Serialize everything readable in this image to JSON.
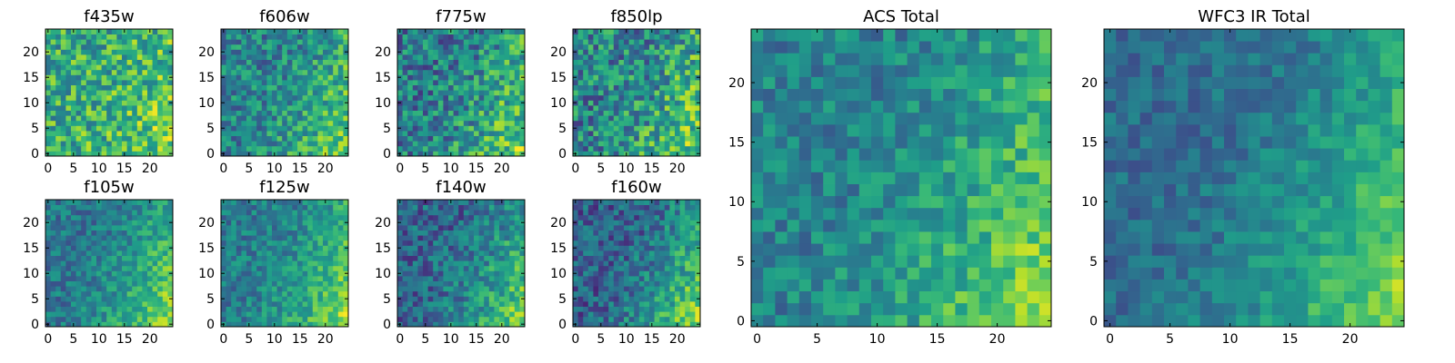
{
  "figure": {
    "background": "#ffffff",
    "colormap": "viridis",
    "colormap_stops": [
      "#440154",
      "#482878",
      "#3e4989",
      "#31688e",
      "#26828e",
      "#1f9e89",
      "#35b779",
      "#6ece58",
      "#b5de2b",
      "#fde725"
    ]
  },
  "chart_data": [
    {
      "type": "heatmap",
      "title": "f435w",
      "grid_size": 25,
      "xticks": [
        "0",
        "5",
        "10",
        "15",
        "20"
      ],
      "yticks": [
        "0",
        "5",
        "10",
        "15",
        "20"
      ],
      "xlim": [
        -0.5,
        24.5
      ],
      "ylim": [
        -0.5,
        24.5
      ],
      "value_range": [
        0,
        1
      ],
      "base_level": 0.62,
      "noise_amplitude": 0.26,
      "gradient": {
        "bright_corner": "lower-right",
        "strength": 0.22
      },
      "seed": 11
    },
    {
      "type": "heatmap",
      "title": "f606w",
      "grid_size": 25,
      "xticks": [
        "0",
        "5",
        "10",
        "15",
        "20"
      ],
      "yticks": [
        "0",
        "5",
        "10",
        "15",
        "20"
      ],
      "xlim": [
        -0.5,
        24.5
      ],
      "ylim": [
        -0.5,
        24.5
      ],
      "value_range": [
        0,
        1
      ],
      "base_level": 0.45,
      "noise_amplitude": 0.22,
      "gradient": {
        "bright_corner": "lower-right",
        "strength": 0.45
      },
      "seed": 23
    },
    {
      "type": "heatmap",
      "title": "f775w",
      "grid_size": 25,
      "xticks": [
        "0",
        "5",
        "10",
        "15",
        "20"
      ],
      "yticks": [
        "0",
        "5",
        "10",
        "15",
        "20"
      ],
      "xlim": [
        -0.5,
        24.5
      ],
      "ylim": [
        -0.5,
        24.5
      ],
      "value_range": [
        0,
        1
      ],
      "base_level": 0.42,
      "noise_amplitude": 0.26,
      "gradient": {
        "bright_corner": "lower-right",
        "strength": 0.5
      },
      "seed": 37
    },
    {
      "type": "heatmap",
      "title": "f850lp",
      "grid_size": 25,
      "xticks": [
        "0",
        "5",
        "10",
        "15",
        "20"
      ],
      "yticks": [
        "0",
        "5",
        "10",
        "15",
        "20"
      ],
      "xlim": [
        -0.5,
        24.5
      ],
      "ylim": [
        -0.5,
        24.5
      ],
      "value_range": [
        0,
        1
      ],
      "base_level": 0.45,
      "noise_amplitude": 0.28,
      "gradient": {
        "bright_corner": "lower-right",
        "strength": 0.45
      },
      "seed": 41
    },
    {
      "type": "heatmap",
      "title": "f105w",
      "grid_size": 25,
      "xticks": [
        "0",
        "5",
        "10",
        "15",
        "20"
      ],
      "yticks": [
        "0",
        "5",
        "10",
        "15",
        "20"
      ],
      "xlim": [
        -0.5,
        24.5
      ],
      "ylim": [
        -0.5,
        24.5
      ],
      "value_range": [
        0,
        1
      ],
      "base_level": 0.4,
      "noise_amplitude": 0.16,
      "gradient": {
        "bright_corner": "lower-right",
        "strength": 0.6
      },
      "seed": 53
    },
    {
      "type": "heatmap",
      "title": "f125w",
      "grid_size": 25,
      "xticks": [
        "0",
        "5",
        "10",
        "15",
        "20"
      ],
      "yticks": [
        "0",
        "5",
        "10",
        "15",
        "20"
      ],
      "xlim": [
        -0.5,
        24.5
      ],
      "ylim": [
        -0.5,
        24.5
      ],
      "value_range": [
        0,
        1
      ],
      "base_level": 0.42,
      "noise_amplitude": 0.16,
      "gradient": {
        "bright_corner": "lower-right",
        "strength": 0.58
      },
      "seed": 67
    },
    {
      "type": "heatmap",
      "title": "f140w",
      "grid_size": 25,
      "xticks": [
        "0",
        "5",
        "10",
        "15",
        "20"
      ],
      "yticks": [
        "0",
        "5",
        "10",
        "15",
        "20"
      ],
      "xlim": [
        -0.5,
        24.5
      ],
      "ylim": [
        -0.5,
        24.5
      ],
      "value_range": [
        0,
        1
      ],
      "base_level": 0.32,
      "noise_amplitude": 0.2,
      "gradient": {
        "bright_corner": "lower-right",
        "strength": 0.66
      },
      "seed": 71
    },
    {
      "type": "heatmap",
      "title": "f160w",
      "grid_size": 25,
      "xticks": [
        "0",
        "5",
        "10",
        "15",
        "20"
      ],
      "yticks": [
        "0",
        "5",
        "10",
        "15",
        "20"
      ],
      "xlim": [
        -0.5,
        24.5
      ],
      "ylim": [
        -0.5,
        24.5
      ],
      "value_range": [
        0,
        1
      ],
      "base_level": 0.3,
      "noise_amplitude": 0.2,
      "gradient": {
        "bright_corner": "lower-right",
        "strength": 0.7
      },
      "seed": 83
    },
    {
      "type": "heatmap",
      "title": "ACS Total",
      "grid_size": 25,
      "xticks": [
        "0",
        "5",
        "10",
        "15",
        "20"
      ],
      "yticks": [
        "0",
        "5",
        "10",
        "15",
        "20"
      ],
      "xlim": [
        -0.5,
        24.5
      ],
      "ylim": [
        -0.5,
        24.5
      ],
      "value_range": [
        0,
        1
      ],
      "base_level": 0.44,
      "noise_amplitude": 0.16,
      "gradient": {
        "bright_corner": "lower-right",
        "strength": 0.56
      },
      "seed": 97
    },
    {
      "type": "heatmap",
      "title": "WFC3 IR Total",
      "grid_size": 25,
      "xticks": [
        "0",
        "5",
        "10",
        "15",
        "20"
      ],
      "yticks": [
        "0",
        "5",
        "10",
        "15",
        "20"
      ],
      "xlim": [
        -0.5,
        24.5
      ],
      "ylim": [
        -0.5,
        24.5
      ],
      "value_range": [
        0,
        1
      ],
      "base_level": 0.36,
      "noise_amplitude": 0.12,
      "gradient": {
        "bright_corner": "lower-right",
        "strength": 0.64
      },
      "seed": 101
    }
  ]
}
